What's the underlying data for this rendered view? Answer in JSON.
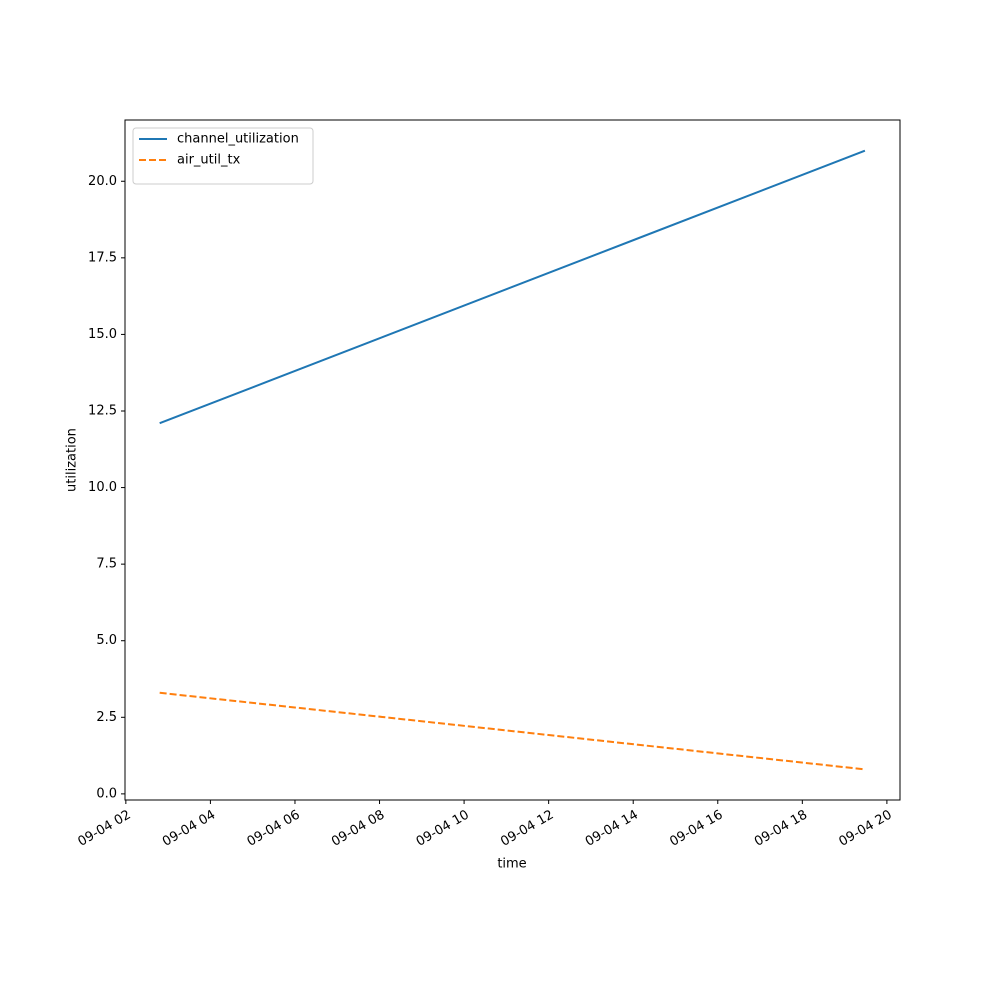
{
  "chart_data": {
    "type": "line",
    "xlabel": "time",
    "ylabel": "utilization",
    "x": [
      2.8,
      19.48
    ],
    "series": [
      {
        "name": "channel_utilization",
        "color": "#1f77b4",
        "linestyle": "solid",
        "values": [
          12.1,
          21.0
        ]
      },
      {
        "name": "air_util_tx",
        "color": "#ff7f0e",
        "linestyle": "dashed",
        "values": [
          3.3,
          0.8
        ]
      }
    ],
    "xlim": [
      1.98,
      20.31
    ],
    "xticks": [
      {
        "value": 2,
        "label": "09-04 02"
      },
      {
        "value": 4,
        "label": "09-04 04"
      },
      {
        "value": 6,
        "label": "09-04 06"
      },
      {
        "value": 8,
        "label": "09-04 08"
      },
      {
        "value": 10,
        "label": "09-04 10"
      },
      {
        "value": 12,
        "label": "09-04 12"
      },
      {
        "value": 14,
        "label": "09-04 14"
      },
      {
        "value": 16,
        "label": "09-04 16"
      },
      {
        "value": 18,
        "label": "09-04 18"
      },
      {
        "value": 20,
        "label": "09-04 20"
      }
    ],
    "ylim": [
      -0.2,
      22.0
    ],
    "yticks": [
      {
        "value": 0,
        "label": "0.0"
      },
      2.5,
      {
        "value": 5,
        "label": "5.0"
      },
      7.5,
      {
        "value": 10,
        "label": "10.0"
      },
      12.5,
      {
        "value": 15,
        "label": "15.0"
      },
      17.5,
      {
        "value": 20,
        "label": "20.0"
      }
    ],
    "grid": false,
    "legend": "upper left"
  }
}
